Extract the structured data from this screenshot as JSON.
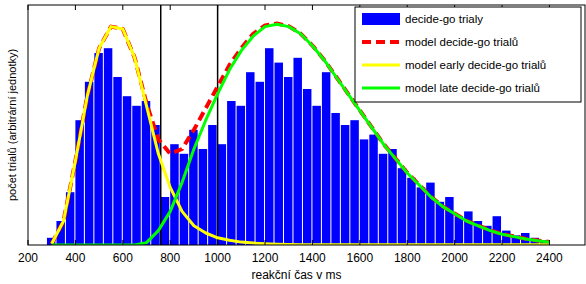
{
  "chart_data": {
    "type": "histogram",
    "x_label": "reakční čas v ms",
    "y_label": "počet trialů (arbitrární jednotky)",
    "xlim": [
      200,
      2550
    ],
    "ylim": [
      0,
      100
    ],
    "xticks": [
      200,
      400,
      600,
      800,
      1000,
      1200,
      1400,
      1600,
      1800,
      2000,
      2200,
      2400
    ],
    "tick_labels": "x",
    "legend": "upper right",
    "vlines": [
      760,
      1000
    ],
    "series": [
      {
        "name": "decide-go trialy",
        "type": "bar",
        "color": "#0000ff",
        "bins": [
          280,
          320,
          360,
          400,
          440,
          480,
          520,
          560,
          600,
          640,
          680,
          720,
          760,
          800,
          840,
          880,
          920,
          960,
          1000,
          1040,
          1080,
          1120,
          1160,
          1200,
          1240,
          1280,
          1320,
          1360,
          1400,
          1440,
          1480,
          1520,
          1560,
          1600,
          1640,
          1680,
          1720,
          1760,
          1800,
          1840,
          1880,
          1920,
          1960,
          2000,
          2040,
          2080,
          2120,
          2160,
          2200,
          2240,
          2280,
          2320,
          2360,
          2400
        ],
        "values": [
          3,
          10,
          22,
          52,
          68,
          80,
          82,
          70,
          62,
          58,
          60,
          50,
          20,
          42,
          38,
          48,
          40,
          50,
          42,
          60,
          58,
          72,
          68,
          82,
          76,
          70,
          78,
          65,
          58,
          72,
          55,
          50,
          52,
          44,
          46,
          38,
          40,
          32,
          28,
          24,
          26,
          18,
          20,
          12,
          14,
          10,
          8,
          12,
          6,
          4,
          5,
          3,
          2
        ]
      },
      {
        "name": "model decide-go trialů",
        "type": "line",
        "line_style": "dashed",
        "color": "#ff0000",
        "x": [
          300,
          350,
          400,
          450,
          500,
          550,
          600,
          650,
          700,
          750,
          800,
          850,
          900,
          950,
          1000,
          1050,
          1100,
          1150,
          1200,
          1250,
          1300,
          1350,
          1400,
          1450,
          1500,
          1550,
          1600,
          1650,
          1700,
          1750,
          1800,
          1850,
          1900,
          1950,
          2000,
          2050,
          2100,
          2150,
          2200,
          2250,
          2300,
          2350,
          2400
        ],
        "values": [
          0.5,
          10,
          35,
          62,
          82,
          91,
          90,
          78,
          59,
          44,
          38,
          40,
          48,
          57,
          66,
          75,
          82,
          88,
          91.5,
          92.3,
          91.2,
          88.1,
          83.1,
          77.1,
          70.1,
          63.1,
          56.1,
          49.1,
          42.1,
          36.1,
          30.1,
          25.1,
          20.1,
          16.1,
          13.1,
          10.1,
          8.1,
          6.1,
          4.6,
          3.6,
          2.6,
          1.9,
          1.3
        ]
      },
      {
        "name": "model early decide-go trialů",
        "type": "line",
        "line_style": "solid",
        "color": "#ffff00",
        "x": [
          300,
          350,
          400,
          450,
          500,
          550,
          600,
          650,
          700,
          750,
          800,
          850,
          900,
          950,
          1000,
          1050,
          1100,
          1150,
          1200,
          1250,
          1300,
          1350,
          1400,
          1450,
          1500,
          1550,
          1600,
          1650,
          1700,
          1750,
          1800,
          1850,
          1900,
          1950,
          2000,
          2050,
          2100,
          2150,
          2200,
          2250,
          2300,
          2350,
          2400
        ],
        "values": [
          0.5,
          10,
          35,
          62,
          82,
          91,
          90,
          78,
          58,
          38,
          24,
          14,
          8,
          5,
          3,
          2,
          1.2,
          0.8,
          0.5,
          0.3,
          0.2,
          0.1,
          0.1,
          0.1,
          0.1,
          0.1,
          0.1,
          0.1,
          0.1,
          0.1,
          0.1,
          0.1,
          0.1,
          0.1,
          0.1,
          0.1,
          0.1,
          0.1,
          0.1,
          0.1,
          0.1,
          0.1,
          0.1
        ]
      },
      {
        "name": "model late decide-go trialů",
        "type": "line",
        "line_style": "solid",
        "color": "#00ff00",
        "x": [
          300,
          350,
          400,
          450,
          500,
          550,
          600,
          650,
          700,
          750,
          800,
          850,
          900,
          950,
          1000,
          1050,
          1100,
          1150,
          1200,
          1250,
          1300,
          1350,
          1400,
          1450,
          1500,
          1550,
          1600,
          1650,
          1700,
          1750,
          1800,
          1850,
          1900,
          1950,
          2000,
          2050,
          2100,
          2150,
          2200,
          2250,
          2300,
          2350,
          2400
        ],
        "values": [
          0,
          0,
          0,
          0,
          0,
          0,
          0,
          0,
          1,
          6,
          14,
          26,
          40,
          52,
          63,
          73,
          81,
          87,
          91,
          92,
          91,
          88,
          83,
          77,
          70,
          63,
          56,
          49,
          42,
          36,
          30,
          25,
          20,
          16,
          13,
          10,
          8,
          6,
          4.5,
          3.5,
          2.5,
          1.8,
          1.2
        ]
      }
    ]
  }
}
